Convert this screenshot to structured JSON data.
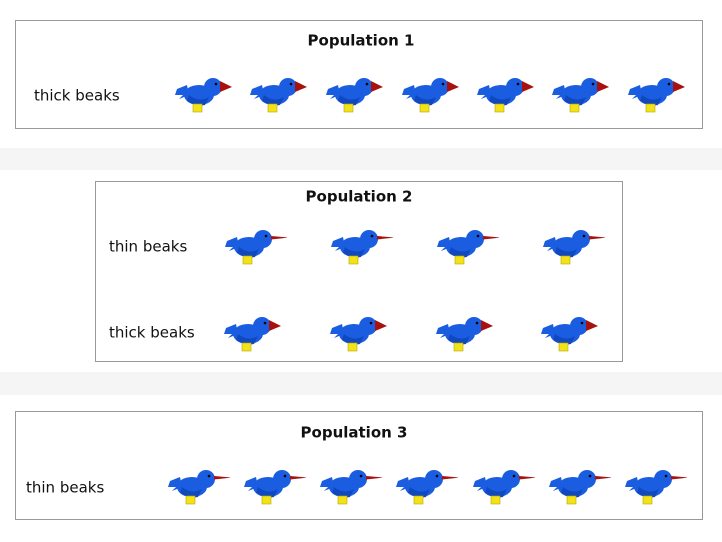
{
  "panels": [
    {
      "title": "Population 1",
      "rows": [
        {
          "label": "thick beaks"
        }
      ]
    },
    {
      "title": "Population 2",
      "rows": [
        {
          "label": "thin beaks"
        },
        {
          "label": "thick beaks"
        }
      ]
    },
    {
      "title": "Population 3",
      "rows": [
        {
          "label": "thin beaks"
        }
      ]
    }
  ]
}
